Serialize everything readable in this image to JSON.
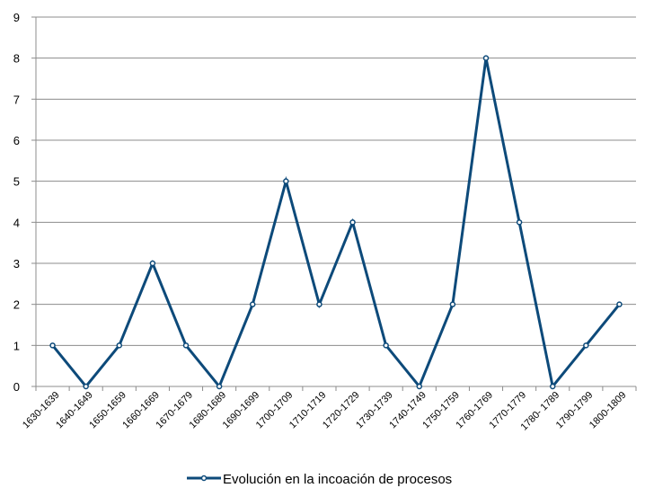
{
  "chart_data": {
    "type": "line",
    "title": "",
    "xlabel": "",
    "ylabel": "",
    "categories": [
      "1630-1639",
      "1640-1649",
      "1650-1659",
      "1660-1669",
      "1670-1679",
      "1680-1689",
      "1690-1699",
      "1700-1709",
      "1710-1719",
      "1720-1729",
      "1730-1739",
      "1740-1749",
      "1750-1759",
      "1760-1769",
      "1770-1779",
      "1780- 1789",
      "1790-1799",
      "1800-1809"
    ],
    "ylim": [
      0,
      9
    ],
    "yticks": [
      "0",
      "1",
      "2",
      "3",
      "4",
      "5",
      "6",
      "7",
      "8",
      "9"
    ],
    "grid": true,
    "legend_position": "bottom",
    "series": [
      {
        "name": "Evolución en la incoación de procesos",
        "color": "#0d4a7a",
        "values": [
          1,
          0,
          1,
          3,
          1,
          0,
          2,
          5,
          2,
          4,
          1,
          0,
          2,
          8,
          4,
          0,
          1,
          2
        ]
      }
    ]
  }
}
